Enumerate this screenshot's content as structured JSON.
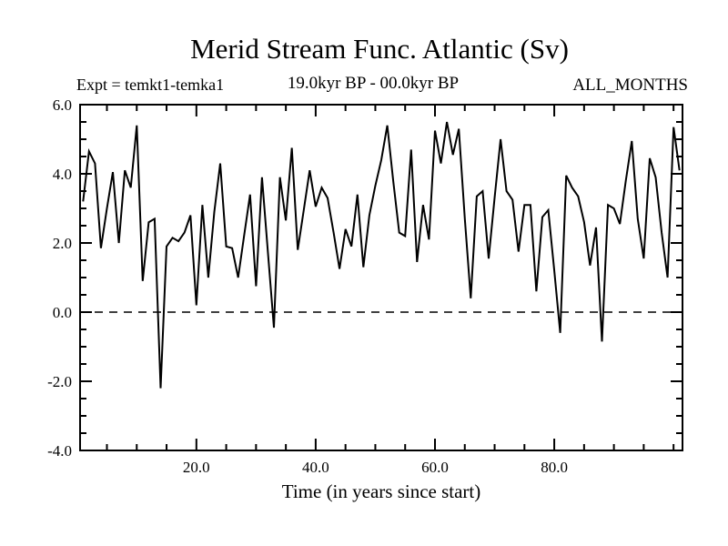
{
  "title": "Merid Stream Func. Atlantic (Sv)",
  "header": {
    "experiment": "Expt = temkt1-temka1",
    "period": "19.0kyr BP - 00.0kyr BP",
    "months": "ALL_MONTHS"
  },
  "chart_data": {
    "type": "line",
    "title": "Merid Stream Func. Atlantic (Sv)",
    "xlabel": "Time (in years since start)",
    "ylabel": "",
    "x_start": 1,
    "x_step": 1,
    "values": [
      3.2,
      4.65,
      4.3,
      1.85,
      3.0,
      4.05,
      2.0,
      4.1,
      3.6,
      5.4,
      0.9,
      2.6,
      2.7,
      -2.2,
      1.9,
      2.15,
      2.05,
      2.3,
      2.8,
      0.2,
      3.1,
      1.0,
      2.9,
      4.3,
      1.9,
      1.85,
      1.0,
      2.2,
      3.4,
      0.75,
      3.9,
      1.7,
      -0.45,
      3.9,
      2.65,
      4.75,
      1.8,
      2.95,
      4.1,
      3.05,
      3.6,
      3.3,
      2.3,
      1.25,
      2.4,
      1.9,
      3.4,
      1.3,
      2.8,
      3.65,
      4.4,
      5.4,
      3.8,
      2.3,
      2.2,
      4.7,
      1.45,
      3.1,
      2.1,
      5.25,
      4.3,
      5.5,
      4.55,
      5.3,
      2.7,
      0.4,
      3.35,
      3.5,
      1.55,
      3.3,
      5.0,
      3.5,
      3.25,
      1.75,
      3.1,
      3.1,
      0.6,
      2.75,
      2.95,
      1.2,
      -0.6,
      3.95,
      3.6,
      3.35,
      2.6,
      1.35,
      2.45,
      -0.85,
      3.1,
      3.0,
      2.55,
      3.8,
      4.95,
      2.7,
      1.55,
      4.45,
      3.9,
      2.3,
      1.0,
      5.35,
      4.1
    ],
    "xlim": [
      0.5,
      101.5
    ],
    "ylim": [
      -4.0,
      6.0
    ],
    "x_major_ticks": [
      20,
      40,
      60,
      80
    ],
    "x_tick_labels": [
      "20.0",
      "40.0",
      "60.0",
      "80.0"
    ],
    "x_minor_step": 5,
    "y_major_ticks": [
      -4,
      -2,
      0,
      2,
      4,
      6
    ],
    "y_tick_labels": [
      "-4.0",
      "-2.0",
      "0.0",
      "2.0",
      "4.0",
      "6.0"
    ],
    "y_minor_step": 0.5,
    "zero_line_value": 0.0,
    "line_color": "#000000",
    "background_color": "#ffffff",
    "grid": false,
    "legend_position": "none"
  }
}
